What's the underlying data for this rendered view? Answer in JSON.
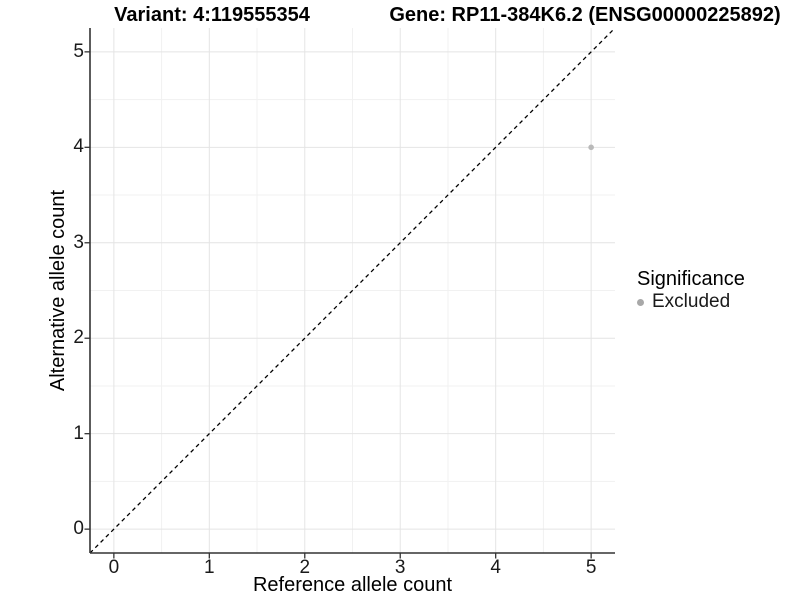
{
  "chart_data": {
    "type": "scatter",
    "title_left": "Variant: 4:119555354",
    "title_right": "Gene: RP11-384K6.2 (ENSG00000225892)",
    "xlabel": "Reference allele count",
    "ylabel": "Alternative allele count",
    "xlim": [
      -0.25,
      5.25
    ],
    "ylim": [
      -0.25,
      5.25
    ],
    "x_ticks": [
      0,
      1,
      2,
      3,
      4,
      5
    ],
    "y_ticks": [
      0,
      1,
      2,
      3,
      4,
      5
    ],
    "grid": "major and minor gridlines on, white background",
    "reference_line": {
      "kind": "identity y=x",
      "style": "dashed",
      "color": "#000000"
    },
    "series": [
      {
        "name": "Excluded",
        "color": "#b9b9b9",
        "points": [
          {
            "x": 5,
            "y": 4
          }
        ]
      }
    ],
    "legend": {
      "title": "Significance",
      "position": "right",
      "items": [
        {
          "label": "Excluded",
          "color": "#a8a8a8"
        }
      ]
    }
  },
  "colors": {
    "background": "#ffffff",
    "grid_major": "#e4e4e4",
    "grid_minor": "#f1f1f1",
    "axis_line": "#333333",
    "tick_text": "#1a1a1a",
    "title_text": "#000000"
  }
}
